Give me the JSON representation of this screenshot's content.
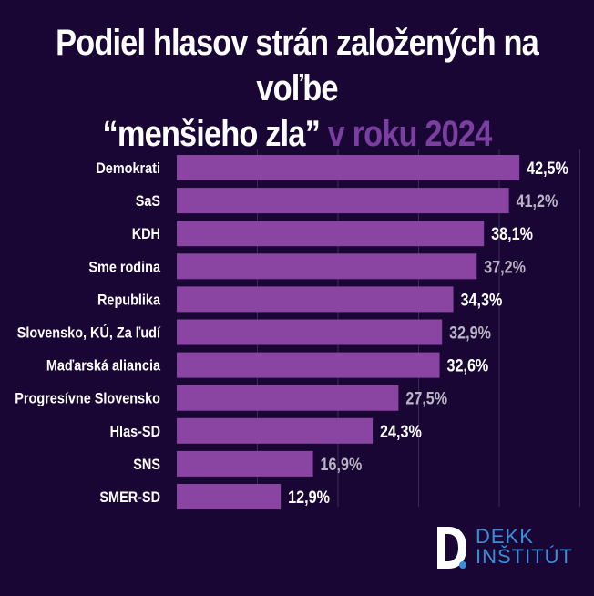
{
  "title": {
    "line1": "Podiel hlasov strán založených na voľbe",
    "line2_quote": "“menšieho zla”",
    "line2_accent": "v roku 2024"
  },
  "colors": {
    "background": "#1a0635",
    "bar": "#8a45a3",
    "accent": "#7a3fa0",
    "label_white": "#ffffff",
    "label_gray": "#b9b3c4",
    "grid": "#3b2a55",
    "logo": "#3a8fd8"
  },
  "logo": {
    "line1": "DEKK",
    "line2": "INŠTITÚT"
  },
  "chart_data": {
    "type": "bar",
    "orientation": "horizontal",
    "categories": [
      "Demokrati",
      "SaS",
      "KDH",
      "Sme rodina",
      "Republika",
      "Slovensko, KÚ, Za ľudí",
      "Maďarská aliancia",
      "Progresívne Slovensko",
      "Hlas-SD",
      "SNS",
      "SMER-SD"
    ],
    "values": [
      42.5,
      41.2,
      38.1,
      37.2,
      34.3,
      32.9,
      32.6,
      27.5,
      24.3,
      16.9,
      12.9
    ],
    "value_labels": [
      "42,5%",
      "41,2%",
      "38,1%",
      "37,2%",
      "34,3%",
      "32,9%",
      "32,6%",
      "27,5%",
      "24,3%",
      "16,9%",
      "12,9%"
    ],
    "label_colors": [
      "white",
      "gray",
      "white",
      "gray",
      "white",
      "gray",
      "white",
      "gray",
      "white",
      "gray",
      "white"
    ],
    "xlim": [
      0,
      50
    ],
    "grid": true
  }
}
